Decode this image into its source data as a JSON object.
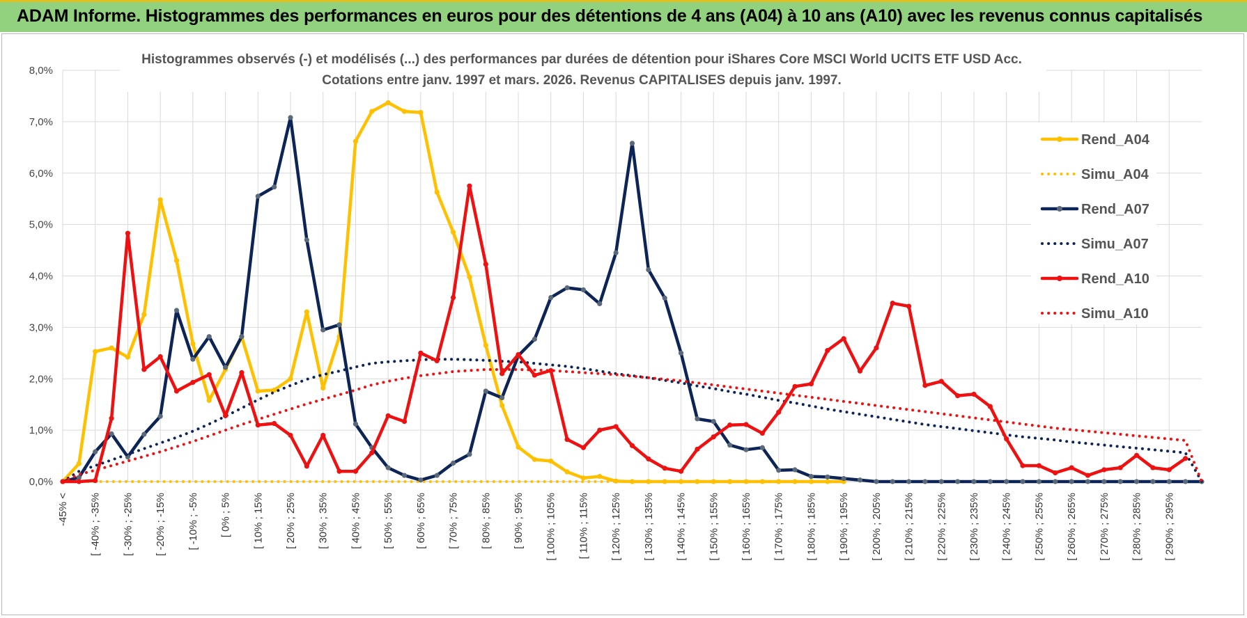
{
  "page": {
    "banner_title": "ADAM Informe. Histogrammes des performances en euros pour des détentions de 4 ans (A04) à 10 ans (A10) avec les revenus connus capitalisés"
  },
  "colors": {
    "banner_bg": "#92d27e",
    "A04": "#ffc000",
    "A07": "#0d2556",
    "A10": "#ee1111",
    "grid": "#d9d9d9"
  },
  "chart_data": {
    "type": "line",
    "title": [
      "Histogrammes observés (-) et modélisés (...) des performances par durées de détention pour iShares Core MSCI World UCITS ETF USD Acc.",
      "Cotations entre janv. 1997 et mars. 2026. Revenus CAPITALISES depuis janv. 1997."
    ],
    "xlabel": "",
    "ylabel": "",
    "ylim": [
      0,
      8
    ],
    "y_ticks": [
      "0,0%",
      "1,0%",
      "2,0%",
      "3,0%",
      "4,0%",
      "5,0%",
      "6,0%",
      "7,0%",
      "8,0%"
    ],
    "categories": [
      "-45% <",
      "[ -45% ; -40%",
      "[ -40% ; -35%",
      "[ -35% ; -30%",
      "[ -30% ; -25%",
      "[ -25% ; -20%",
      "[ -20% ; -15%",
      "[ -15% ; -10%",
      "[ -10% ; -5%",
      "[ -5% ; 0%",
      "[ 0% ; 5%",
      "[ 5% ; 10%",
      "[ 10% ; 15%",
      "[ 15% ; 20%",
      "[ 20% ; 25%",
      "[ 25% ; 30%",
      "[ 30% ; 35%",
      "[ 35% ; 40%",
      "[ 40% ; 45%",
      "[ 45% ; 50%",
      "[ 50% ; 55%",
      "[ 55% ; 60%",
      "[ 60% ; 65%",
      "[ 65% ; 70%",
      "[ 70% ; 75%",
      "[ 75% ; 80%",
      "[ 80% ; 85%",
      "[ 85% ; 90%",
      "[ 90% ; 95%",
      "[ 95% ; 100%",
      "[ 100% ; 105%",
      "[ 105% ; 110%",
      "[ 110% ; 115%",
      "[ 115% ; 120%",
      "[ 120% ; 125%",
      "[ 125% ; 130%",
      "[ 130% ; 135%",
      "[ 135% ; 140%",
      "[ 140% ; 145%",
      "[ 145% ; 150%",
      "[ 150% ; 155%",
      "[ 155% ; 160%",
      "[ 160% ; 165%",
      "[ 165% ; 170%",
      "[ 170% ; 175%",
      "[ 175% ; 180%",
      "[ 180% ; 185%",
      "[ 185% ; 190%",
      "[ 190% ; 195%",
      "[ 195% ; 200%",
      "[ 200% ; 205%",
      "[ 205% ; 210%",
      "[ 210% ; 215%",
      "[ 215% ; 220%",
      "[ 220% ; 225%",
      "[ 225% ; 230%",
      "[ 230% ; 235%",
      "[ 235% ; 240%",
      "[ 240% ; 245%",
      "[ 245% ; 250%",
      "[ 250% ; 255%",
      "[ 255% ; 260%",
      "[ 260% ; 265%",
      "[ 265% ; 270%",
      "[ 270% ; 275%",
      "[ 275% ; 280%",
      "[ 280% ; 285%",
      "[ 285% ; 290%",
      "[ 290% ; 295%",
      "[ 295% ; 300%",
      "300% >"
    ],
    "visible_tick_labels": [
      "-45% <",
      "[ -40% ; -35%",
      "[ -30% ; -25%",
      "[ -20% ; -15%",
      "[ -10% ; -5%",
      "[ 0% ; 5%",
      "[ 10% ; 15%",
      "[ 20% ; 25%",
      "[ 30% ; 35%",
      "[ 40% ; 45%",
      "[ 50% ; 55%",
      "[ 60% ; 65%",
      "[ 70% ; 75%",
      "[ 80% ; 85%",
      "[ 90% ; 95%",
      "[ 100% ; 105%",
      "[ 110% ; 115%",
      "[ 120% ; 125%",
      "[ 130% ; 135%",
      "[ 140% ; 145%",
      "[ 150% ; 155%",
      "[ 160% ; 165%",
      "[ 170% ; 175%",
      "[ 180% ; 185%",
      "[ 190% ; 195%",
      "[ 200% ; 205%",
      "[ 210% ; 215%",
      "[ 220% ; 225%",
      "[ 230% ; 235%",
      "[ 240% ; 245%",
      "[ 250% ; 255%",
      "[ 260% ; 265%",
      "[ 270% ; 275%",
      "[ 280% ; 285%",
      "[ 290% ; 295%"
    ],
    "series": [
      {
        "name": "Rend_A04",
        "style": "solid",
        "color": "#ffc000",
        "values": [
          0,
          0.35,
          2.53,
          2.6,
          2.42,
          3.25,
          5.48,
          4.3,
          2.68,
          1.58,
          2.18,
          2.82,
          1.76,
          1.78,
          2.0,
          3.3,
          1.82,
          2.82,
          6.62,
          7.2,
          7.37,
          7.2,
          7.18,
          5.63,
          4.85,
          3.98,
          2.65,
          1.48,
          0.67,
          0.43,
          0.4,
          0.19,
          0.07,
          0.1,
          0.01,
          0,
          0,
          0,
          0,
          0,
          0,
          0,
          0,
          0,
          0,
          0,
          0,
          0,
          0,
          null,
          null,
          null,
          null,
          null,
          null,
          null,
          null,
          null,
          null,
          null,
          null,
          null,
          null,
          null,
          null,
          null,
          null,
          null,
          null,
          null,
          null
        ]
      },
      {
        "name": "Simu_A04",
        "style": "dotted",
        "color": "#ffc000",
        "values": [
          0,
          0,
          0,
          0,
          0,
          0,
          0,
          0,
          0,
          0,
          0,
          0,
          0,
          0,
          0,
          0,
          0,
          0,
          0,
          0,
          0,
          0,
          0,
          0,
          0,
          0,
          0,
          0,
          0,
          0,
          0,
          0,
          0,
          0,
          0,
          0,
          0,
          0,
          0,
          0,
          0,
          0,
          0,
          0,
          0,
          0,
          0,
          0,
          0,
          null,
          null,
          null,
          null,
          null,
          null,
          null,
          null,
          null,
          null,
          null,
          null,
          null,
          null,
          null,
          null,
          null,
          null,
          null,
          null,
          null,
          null
        ]
      },
      {
        "name": "Rend_A07",
        "style": "solid",
        "color": "#0d2556",
        "values": [
          0,
          0.08,
          0.58,
          0.93,
          0.48,
          0.92,
          1.27,
          3.33,
          2.38,
          2.82,
          2.22,
          2.82,
          5.55,
          5.73,
          7.08,
          4.7,
          2.95,
          3.05,
          1.12,
          0.66,
          0.27,
          0.12,
          0.03,
          0.12,
          0.36,
          0.53,
          1.76,
          1.63,
          2.45,
          2.77,
          3.58,
          3.77,
          3.73,
          3.46,
          4.45,
          6.58,
          4.12,
          3.57,
          2.5,
          1.22,
          1.17,
          0.71,
          0.62,
          0.66,
          0.22,
          0.23,
          0.1,
          0.09,
          0.06,
          0.03,
          0,
          0,
          0,
          0,
          0,
          0,
          0,
          0,
          0,
          0,
          0,
          0,
          0,
          0,
          0,
          0,
          0,
          0,
          0,
          0,
          0
        ]
      },
      {
        "name": "Simu_A07",
        "style": "dotted",
        "color": "#0d2556",
        "values": [
          0,
          0.2,
          0.31,
          0.42,
          0.53,
          0.64,
          0.75,
          0.86,
          0.98,
          1.12,
          1.27,
          1.43,
          1.59,
          1.74,
          1.87,
          1.99,
          2.08,
          2.15,
          2.23,
          2.3,
          2.33,
          2.35,
          2.37,
          2.38,
          2.38,
          2.37,
          2.36,
          2.34,
          2.33,
          2.3,
          2.27,
          2.24,
          2.2,
          2.15,
          2.1,
          2.06,
          2.02,
          1.97,
          1.92,
          1.86,
          1.81,
          1.75,
          1.7,
          1.64,
          1.58,
          1.53,
          1.47,
          1.41,
          1.36,
          1.31,
          1.26,
          1.21,
          1.16,
          1.11,
          1.07,
          1.03,
          0.99,
          0.95,
          0.91,
          0.87,
          0.84,
          0.81,
          0.77,
          0.74,
          0.71,
          0.68,
          0.65,
          0.62,
          0.59,
          0.56,
          0
        ]
      },
      {
        "name": "Rend_A10",
        "style": "solid",
        "color": "#ee1111",
        "values": [
          0,
          0,
          0.02,
          1.23,
          4.83,
          2.18,
          2.43,
          1.76,
          1.93,
          2.08,
          1.28,
          2.12,
          1.1,
          1.13,
          0.9,
          0.3,
          0.9,
          0.2,
          0.2,
          0.56,
          1.28,
          1.17,
          2.5,
          2.35,
          3.58,
          5.75,
          4.23,
          2.1,
          2.47,
          2.07,
          2.16,
          0.82,
          0.66,
          1.0,
          1.07,
          0.7,
          0.44,
          0.26,
          0.2,
          0.63,
          0.87,
          1.1,
          1.11,
          0.94,
          1.35,
          1.85,
          1.9,
          2.55,
          2.78,
          2.15,
          2.6,
          3.47,
          3.41,
          1.87,
          1.95,
          1.67,
          1.7,
          1.46,
          0.83,
          0.31,
          0.31,
          0.17,
          0.27,
          0.12,
          0.23,
          0.27,
          0.51,
          0.27,
          0.23,
          0.45,
          null
        ]
      },
      {
        "name": "Simu_A10",
        "style": "dotted",
        "color": "#ee1111",
        "values": [
          0,
          0.14,
          0.22,
          0.31,
          0.4,
          0.49,
          0.58,
          0.68,
          0.78,
          0.89,
          1.0,
          1.11,
          1.21,
          1.31,
          1.41,
          1.51,
          1.6,
          1.69,
          1.78,
          1.88,
          1.95,
          2.01,
          2.06,
          2.1,
          2.14,
          2.16,
          2.18,
          2.18,
          2.18,
          2.17,
          2.16,
          2.14,
          2.12,
          2.1,
          2.08,
          2.05,
          2.02,
          1.99,
          1.96,
          1.92,
          1.88,
          1.84,
          1.8,
          1.76,
          1.72,
          1.68,
          1.64,
          1.6,
          1.56,
          1.52,
          1.48,
          1.44,
          1.4,
          1.36,
          1.32,
          1.28,
          1.24,
          1.2,
          1.16,
          1.12,
          1.08,
          1.04,
          1.01,
          0.98,
          0.95,
          0.92,
          0.89,
          0.86,
          0.83,
          0.8,
          0
        ]
      }
    ],
    "legend": [
      "Rend_A04",
      "Simu_A04",
      "Rend_A07",
      "Simu_A07",
      "Rend_A10",
      "Simu_A10"
    ],
    "legend_position": "right",
    "grid": true
  }
}
